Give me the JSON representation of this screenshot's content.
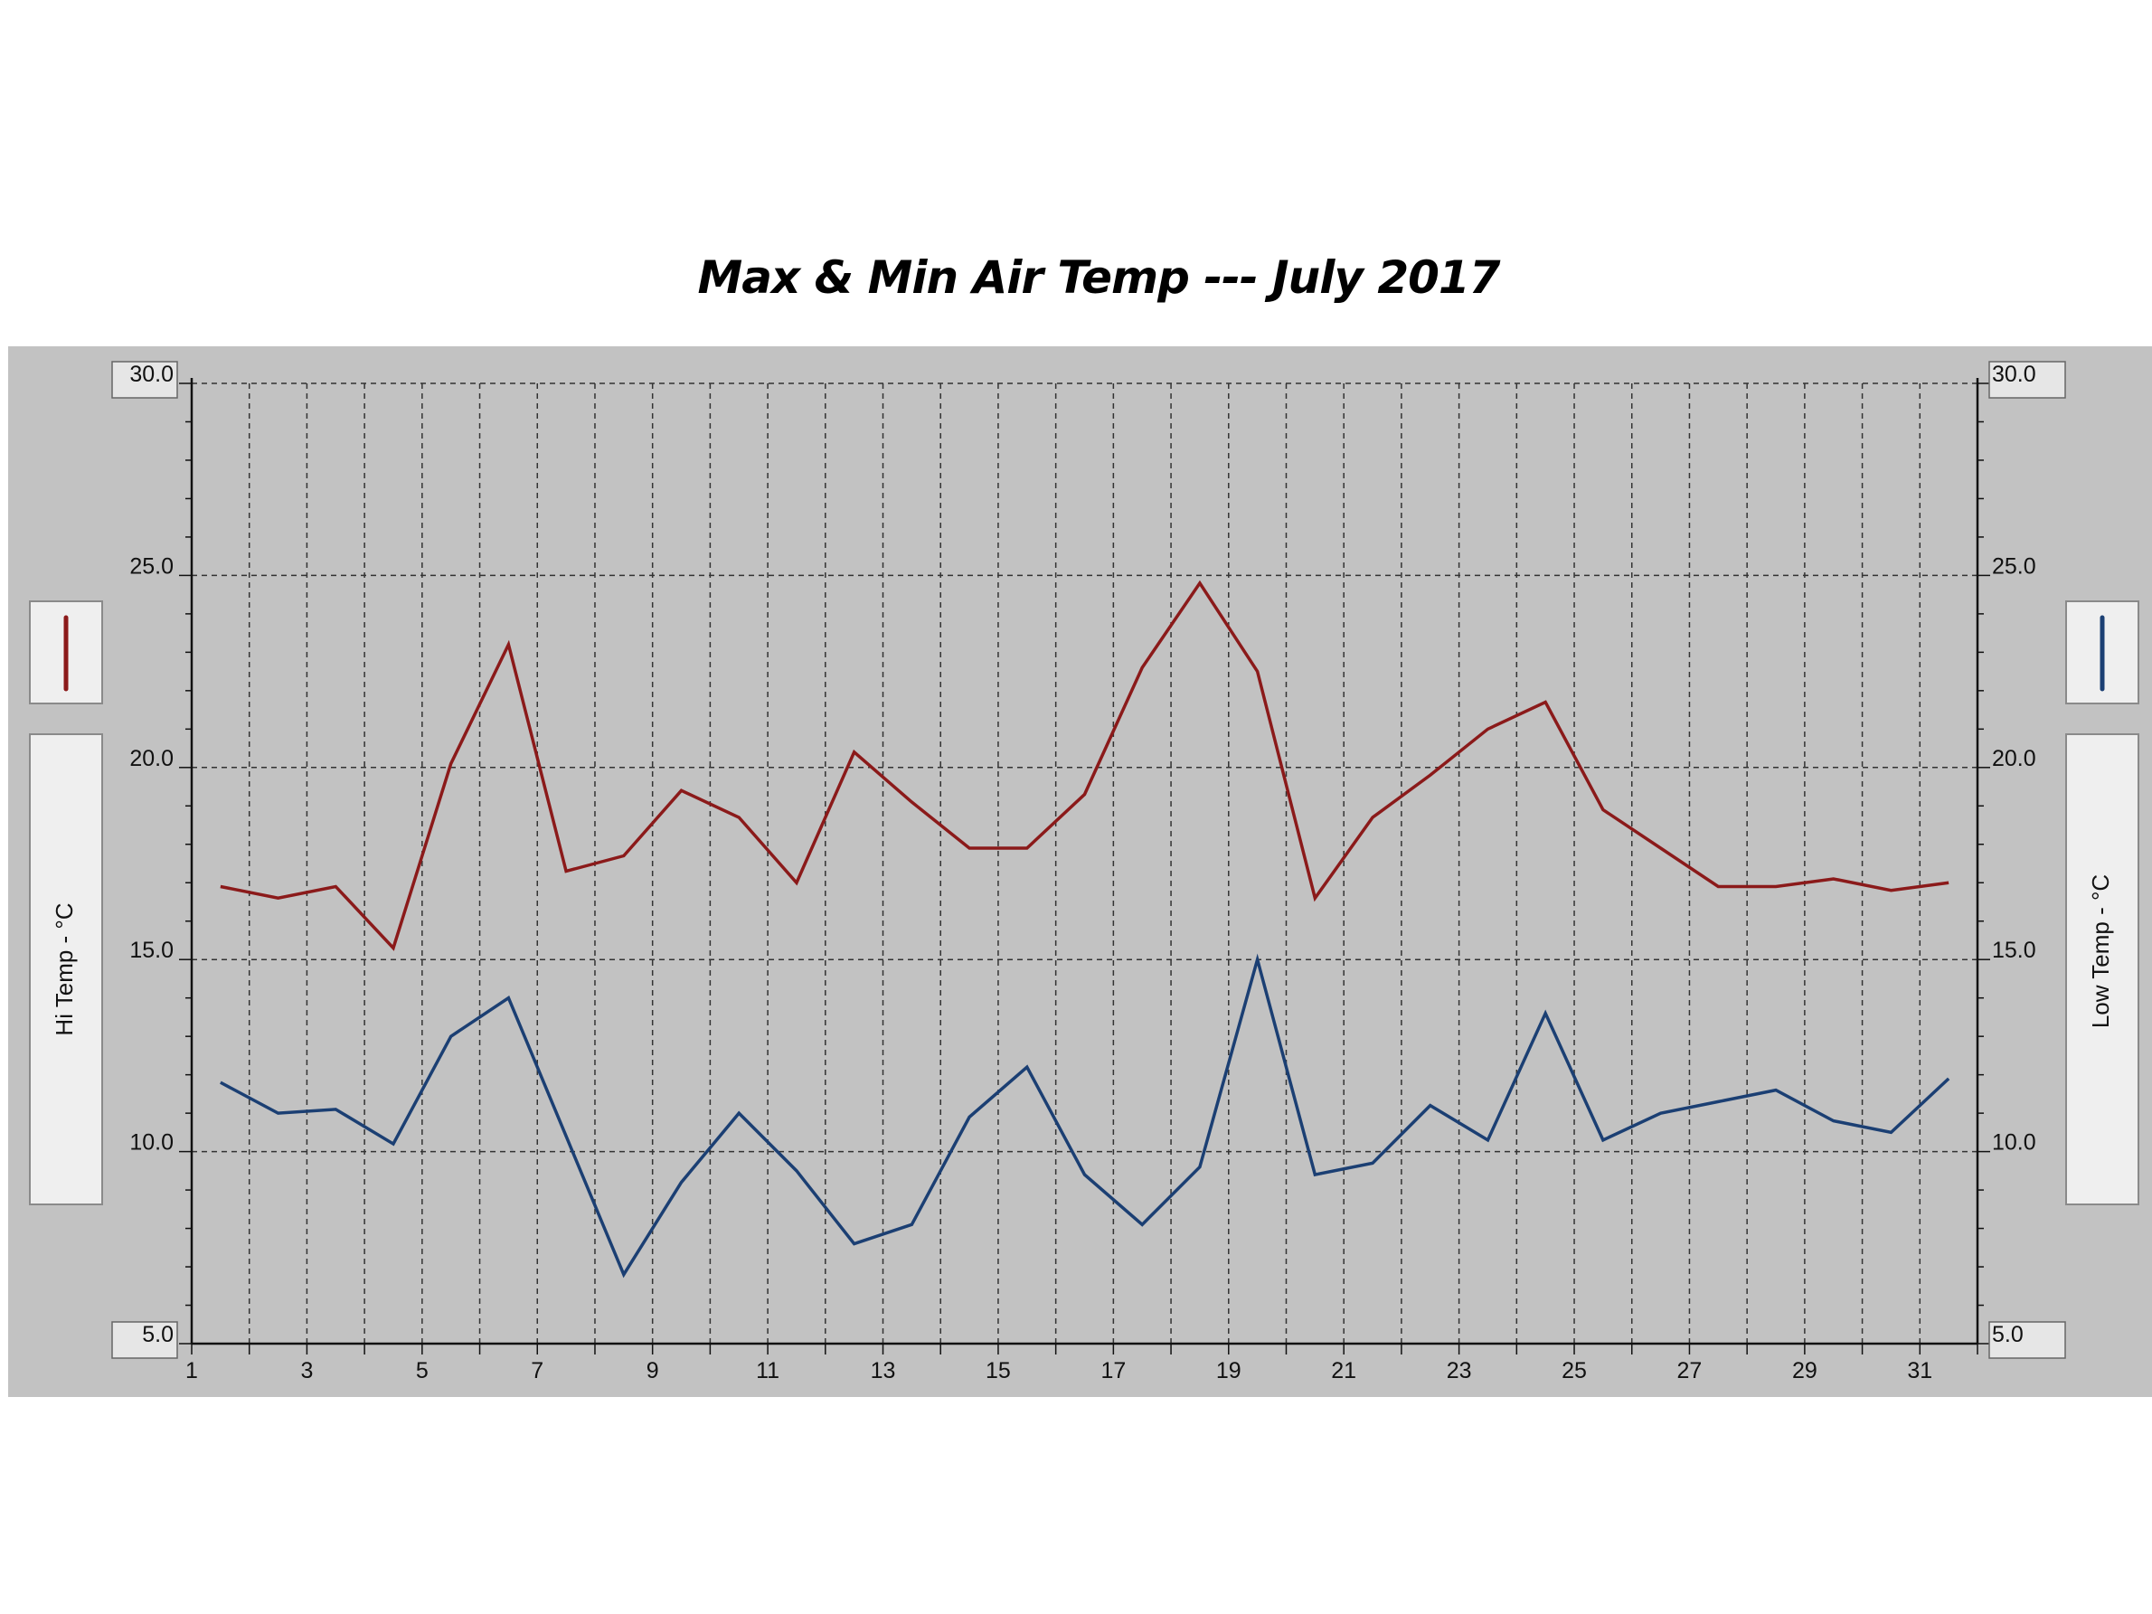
{
  "chart_data": {
    "type": "line",
    "title": "Max & Min Air Temp --- July 2017",
    "left_axis_label": "Hi Temp - °C",
    "right_axis_label": "Low Temp - °C",
    "ylim": [
      5,
      30
    ],
    "xlim": [
      1,
      32
    ],
    "y_ticks": [
      "5.0",
      "10.0",
      "15.0",
      "20.0",
      "25.0",
      "30.0"
    ],
    "x_ticks": [
      "1",
      "3",
      "5",
      "7",
      "9",
      "11",
      "13",
      "15",
      "17",
      "19",
      "21",
      "23",
      "25",
      "27",
      "29",
      "31"
    ],
    "grid": true,
    "series": [
      {
        "name": "Hi Temp",
        "color": "#8b1a1a",
        "x": [
          1.5,
          2.5,
          3.5,
          4.5,
          5.5,
          6.5,
          7.5,
          8.5,
          9.5,
          10.5,
          11.5,
          12.5,
          13.5,
          14.5,
          15.5,
          16.5,
          17.5,
          18.5,
          19.5,
          20.5,
          21.5,
          22.5,
          23.5,
          24.5,
          25.5,
          26.5,
          27.5,
          28.5,
          29.5,
          30.5,
          31.5
        ],
        "values": [
          16.9,
          16.6,
          16.9,
          15.3,
          20.1,
          23.2,
          17.3,
          17.7,
          19.4,
          18.7,
          17.0,
          20.4,
          19.1,
          17.9,
          17.9,
          19.3,
          22.6,
          24.8,
          22.5,
          16.6,
          18.7,
          19.8,
          21.0,
          21.7,
          18.9,
          17.9,
          16.9,
          16.9,
          17.1,
          16.8,
          17.0
        ]
      },
      {
        "name": "Low Temp",
        "color": "#1b3f73",
        "x": [
          1.5,
          2.5,
          3.5,
          4.5,
          5.5,
          6.5,
          7.5,
          8.5,
          9.5,
          10.5,
          11.5,
          12.5,
          13.5,
          14.5,
          15.5,
          16.5,
          17.5,
          18.5,
          19.5,
          20.5,
          21.5,
          22.5,
          23.5,
          24.5,
          25.5,
          26.5,
          27.5,
          28.5,
          29.5,
          30.5,
          31.5
        ],
        "values": [
          11.8,
          11.0,
          11.1,
          10.2,
          13.0,
          14.0,
          10.4,
          6.8,
          9.2,
          11.0,
          9.5,
          7.6,
          8.1,
          10.9,
          12.2,
          9.4,
          8.1,
          9.6,
          15.0,
          9.4,
          9.7,
          11.2,
          10.3,
          13.6,
          10.3,
          11.0,
          11.3,
          11.6,
          10.8,
          10.5,
          11.9
        ]
      }
    ]
  }
}
